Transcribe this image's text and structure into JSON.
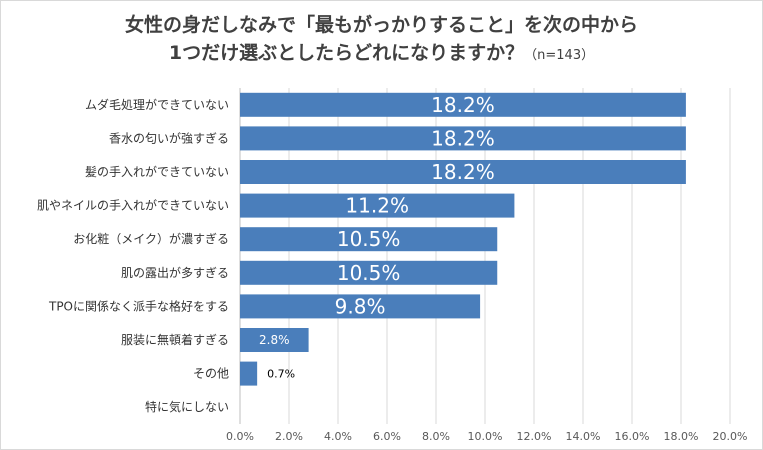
{
  "chart_data": {
    "type": "bar",
    "orientation": "horizontal",
    "title_line1": "女性の身だしなみで「最もがっかりすること」を次の中から",
    "title_line2": "1つだけ選ぶとしたらどれになりますか？",
    "sample_size": "（n=143）",
    "categories": [
      "ムダ毛処理ができていない",
      "香水の匂いが強すぎる",
      "髪の手入れができていない",
      "肌やネイルの手入れができていない",
      "お化粧（メイク）が濃すぎる",
      "肌の露出が多すぎる",
      "TPOに関係なく派手な格好をする",
      "服装に無頓着すぎる",
      "その他",
      "特に気にしない"
    ],
    "values": [
      18.2,
      18.2,
      18.2,
      11.2,
      10.5,
      10.5,
      9.8,
      2.8,
      0.7,
      0
    ],
    "value_labels": [
      "18.2%",
      "18.2%",
      "18.2%",
      "11.2%",
      "10.5%",
      "10.5%",
      "9.8%",
      "2.8%",
      "0.7%",
      ""
    ],
    "xlim": [
      0,
      20
    ],
    "xticks": [
      "0.0%",
      "2.0%",
      "4.0%",
      "6.0%",
      "8.0%",
      "10.0%",
      "12.0%",
      "14.0%",
      "16.0%",
      "18.0%",
      "20.0%"
    ],
    "grid": true,
    "bar_color": "#4a7ebb",
    "gridline_color": "#d9d9d9"
  }
}
